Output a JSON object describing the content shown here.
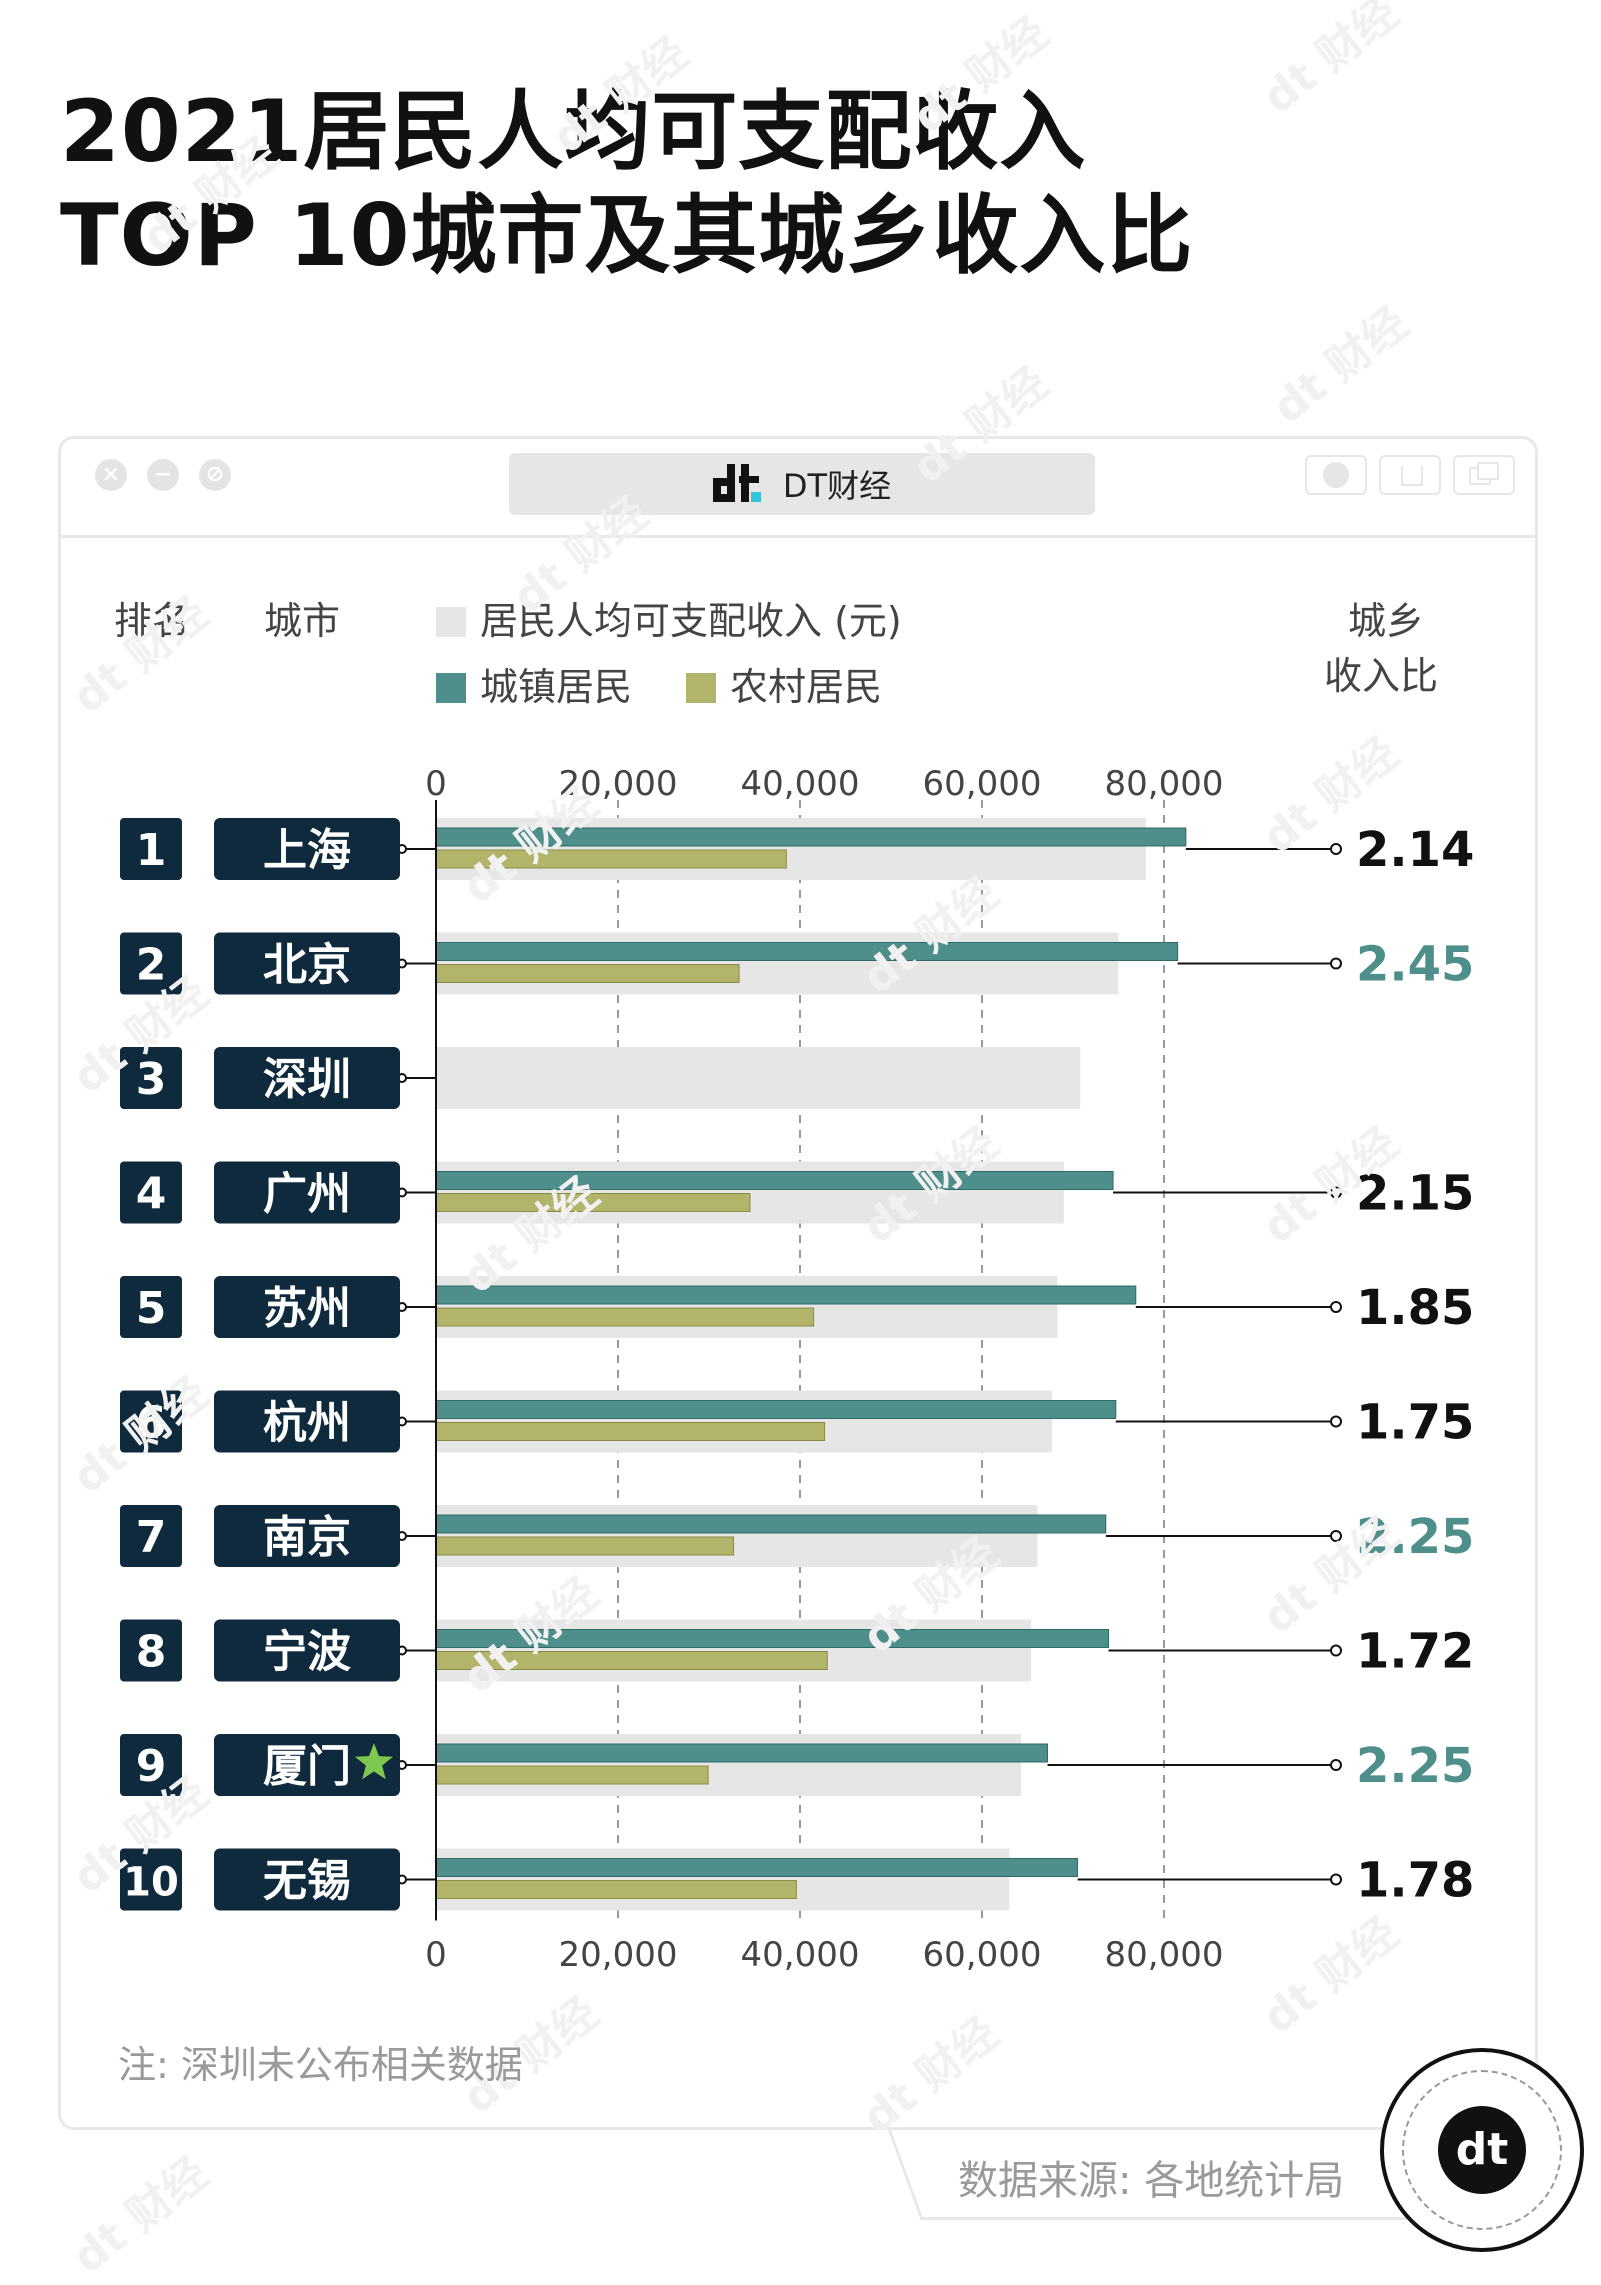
{
  "title": {
    "line1": "2021居民人均可支配收入",
    "line2": "TOP 10城市及其城乡收入比"
  },
  "watermark_text": "dt 财经",
  "window": {
    "tab_label": "DT财经",
    "logo_text": "dt"
  },
  "headers": {
    "rank": "排名",
    "city": "城市",
    "total_legend": "居民人均可支配收入 (元)",
    "urban_legend": "城镇居民",
    "rural_legend": "农村居民",
    "ratio_line1": "城乡",
    "ratio_line2": "收入比"
  },
  "colors": {
    "urban": "#4e8e8b",
    "rural": "#b2b46a",
    "total": "#e6e6e6",
    "label_bg": "#0f2a3d",
    "ratio_highlight": "#4e8e8b",
    "ratio_normal": "#111111",
    "star": "#7ec850"
  },
  "chart_data": {
    "type": "bar",
    "orientation": "horizontal",
    "title": "2021居民人均可支配收入 TOP 10城市及其城乡收入比",
    "x_axis": {
      "min": 0,
      "max": 80000,
      "ticks": [
        0,
        20000,
        40000,
        60000,
        80000
      ],
      "tick_labels": [
        "0",
        "20,000",
        "40,000",
        "60,000",
        "80,000"
      ],
      "grid": "dashed"
    },
    "categories": [
      "上海",
      "北京",
      "深圳",
      "广州",
      "苏州",
      "杭州",
      "南京",
      "宁波",
      "厦门",
      "无锡"
    ],
    "ranks": [
      "1",
      "2",
      "3",
      "4",
      "5",
      "6",
      "7",
      "8",
      "9",
      "10"
    ],
    "series": [
      {
        "name": "居民人均可支配收入 (元)",
        "key": "total",
        "values": [
          78000,
          75000,
          70800,
          69000,
          68300,
          67700,
          66100,
          65400,
          64300,
          63000
        ]
      },
      {
        "name": "城镇居民",
        "key": "urban",
        "values": [
          82400,
          81500,
          null,
          74400,
          76900,
          74700,
          73600,
          73900,
          67200,
          70500
        ]
      },
      {
        "name": "农村居民",
        "key": "rural",
        "values": [
          38500,
          33300,
          null,
          34500,
          41500,
          42700,
          32700,
          43000,
          29900,
          39600
        ]
      }
    ],
    "ratio": [
      "2.14",
      "2.45",
      "",
      "2.15",
      "1.85",
      "1.75",
      "2.25",
      "1.72",
      "2.25",
      "1.78"
    ],
    "ratio_highlight": [
      false,
      true,
      false,
      false,
      false,
      false,
      true,
      false,
      true,
      false
    ],
    "star": [
      false,
      false,
      false,
      false,
      false,
      false,
      false,
      false,
      true,
      false
    ]
  },
  "note": "注: 深圳未公布相关数据",
  "source": "数据来源: 各地统计局",
  "badge_text": "dt"
}
